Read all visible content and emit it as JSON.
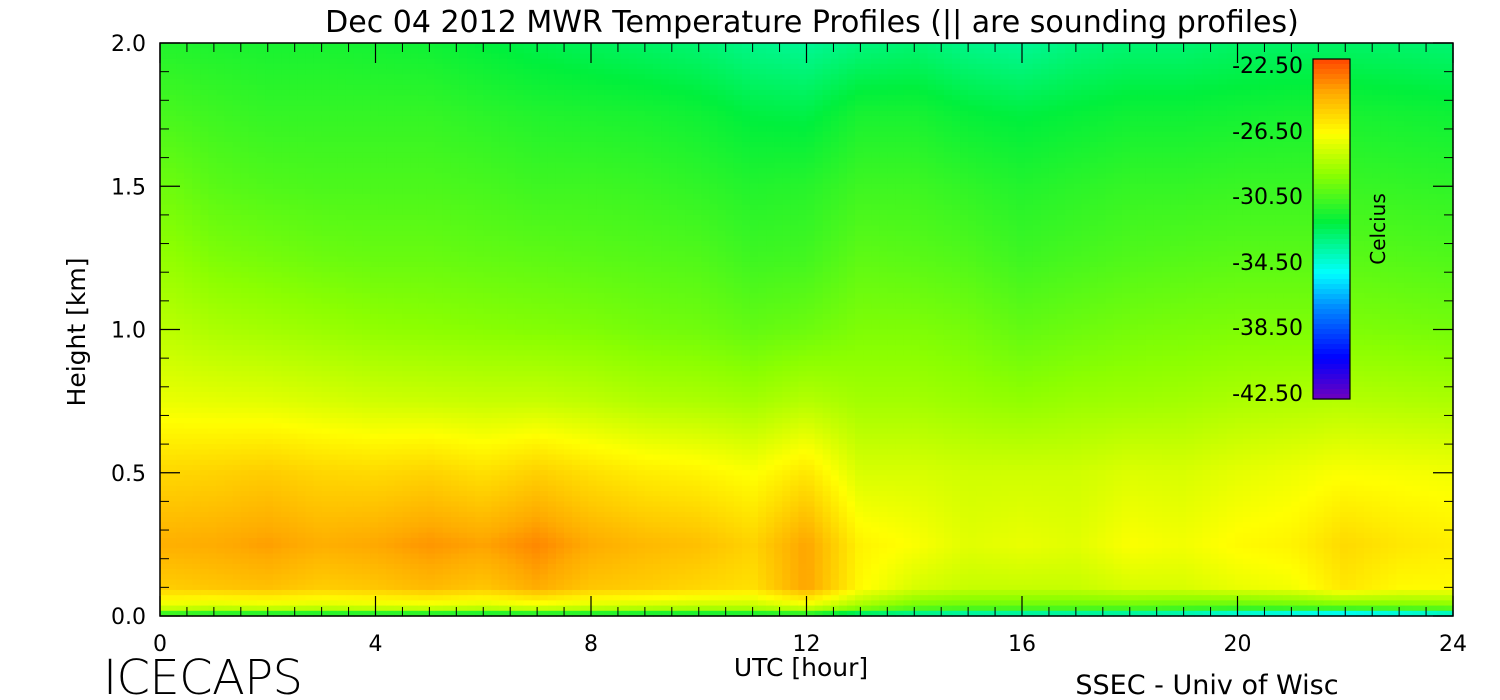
{
  "chart_data": {
    "type": "heatmap",
    "title": "Dec 04 2012 MWR Temperature Profiles (|| are sounding profiles)",
    "xlabel": "UTC [hour]",
    "ylabel": "Height [km]",
    "xlim": [
      0,
      24
    ],
    "ylim": [
      0,
      2.0
    ],
    "x_ticks": [
      "0",
      "4",
      "8",
      "12",
      "16",
      "20",
      "24"
    ],
    "y_ticks": [
      "0.0",
      "0.5",
      "1.0",
      "1.5",
      "2.0"
    ],
    "colorbar": {
      "label": "Celcius",
      "ticks": [
        "-22.50",
        "-26.50",
        "-30.50",
        "-34.50",
        "-38.50",
        "-42.50"
      ],
      "range": [
        -43.5,
        -22.0
      ]
    },
    "time_hours": [
      0.25,
      1,
      2,
      3,
      4,
      5,
      6,
      7,
      8,
      9,
      10,
      11,
      12,
      13,
      14,
      15,
      16,
      17,
      18,
      19,
      20,
      21,
      22,
      23,
      23.9
    ],
    "profiles_celsius": {
      "height_km": [
        0.0,
        0.03,
        0.1,
        0.25,
        0.5,
        0.75,
        1.0,
        1.25,
        1.5,
        1.75,
        2.0
      ],
      "values": [
        [
          -32.5,
          -27.5,
          -25.2,
          -24.3,
          -25.5,
          -27.2,
          -28.3,
          -29.2,
          -30.0,
          -30.8,
          -31.6
        ],
        [
          -32.8,
          -27.8,
          -25.0,
          -24.2,
          -25.4,
          -27.3,
          -28.6,
          -29.6,
          -30.4,
          -31.0,
          -31.7
        ],
        [
          -33.0,
          -27.6,
          -24.8,
          -23.9,
          -25.2,
          -27.4,
          -28.8,
          -29.8,
          -30.6,
          -31.2,
          -31.8
        ],
        [
          -33.0,
          -27.8,
          -25.2,
          -24.3,
          -25.5,
          -27.6,
          -29.0,
          -30.0,
          -30.7,
          -31.2,
          -31.8
        ],
        [
          -33.0,
          -27.6,
          -25.0,
          -24.1,
          -25.6,
          -27.8,
          -29.2,
          -30.1,
          -30.7,
          -31.2,
          -31.9
        ],
        [
          -33.0,
          -27.5,
          -24.6,
          -23.7,
          -25.4,
          -27.9,
          -29.3,
          -30.1,
          -30.7,
          -31.2,
          -32.0
        ],
        [
          -33.2,
          -27.8,
          -25.0,
          -24.0,
          -25.8,
          -28.0,
          -29.4,
          -30.2,
          -30.8,
          -31.4,
          -32.3
        ],
        [
          -33.0,
          -27.4,
          -24.2,
          -23.4,
          -25.3,
          -28.0,
          -29.5,
          -30.3,
          -31.0,
          -31.6,
          -32.6
        ],
        [
          -33.0,
          -27.8,
          -25.0,
          -24.2,
          -25.8,
          -28.2,
          -29.6,
          -30.4,
          -31.0,
          -31.7,
          -32.8
        ],
        [
          -33.2,
          -28.0,
          -25.2,
          -24.6,
          -26.2,
          -28.5,
          -29.8,
          -30.5,
          -31.1,
          -31.8,
          -33.0
        ],
        [
          -33.2,
          -28.2,
          -25.5,
          -24.8,
          -26.4,
          -28.6,
          -29.9,
          -30.6,
          -31.3,
          -32.0,
          -33.2
        ],
        [
          -33.0,
          -28.2,
          -25.8,
          -25.4,
          -26.8,
          -28.8,
          -30.2,
          -31.0,
          -31.6,
          -32.4,
          -33.6
        ],
        [
          -32.6,
          -27.6,
          -24.0,
          -24.0,
          -26.0,
          -28.4,
          -30.0,
          -30.9,
          -31.5,
          -32.5,
          -33.8
        ],
        [
          -34.5,
          -29.0,
          -26.6,
          -26.4,
          -27.6,
          -28.8,
          -29.6,
          -30.3,
          -31.0,
          -31.8,
          -33.4
        ],
        [
          -35.0,
          -30.0,
          -27.6,
          -26.8,
          -27.6,
          -28.8,
          -29.6,
          -30.4,
          -31.0,
          -31.8,
          -33.2
        ],
        [
          -35.5,
          -30.2,
          -28.0,
          -27.4,
          -27.8,
          -29.0,
          -29.8,
          -30.6,
          -31.3,
          -32.2,
          -33.6
        ],
        [
          -35.5,
          -30.2,
          -28.0,
          -27.2,
          -27.8,
          -29.2,
          -30.2,
          -31.0,
          -31.6,
          -32.4,
          -33.8
        ],
        [
          -35.5,
          -30.2,
          -28.0,
          -27.4,
          -27.8,
          -29.0,
          -30.0,
          -30.8,
          -31.4,
          -32.2,
          -33.4
        ],
        [
          -35.5,
          -30.2,
          -27.6,
          -26.8,
          -27.5,
          -28.9,
          -29.8,
          -30.6,
          -31.2,
          -32.0,
          -33.2
        ],
        [
          -35.8,
          -30.4,
          -27.6,
          -27.0,
          -27.6,
          -28.8,
          -29.7,
          -30.5,
          -31.2,
          -32.0,
          -33.2
        ],
        [
          -36.5,
          -30.6,
          -27.2,
          -26.6,
          -27.3,
          -28.6,
          -29.6,
          -30.4,
          -31.1,
          -31.9,
          -33.0
        ],
        [
          -37.0,
          -30.4,
          -27.0,
          -26.4,
          -27.1,
          -28.5,
          -29.6,
          -30.4,
          -31.1,
          -31.8,
          -33.0
        ],
        [
          -37.5,
          -30.2,
          -26.0,
          -25.6,
          -26.8,
          -28.4,
          -29.6,
          -30.4,
          -31.1,
          -31.8,
          -33.0
        ],
        [
          -37.0,
          -30.0,
          -26.6,
          -26.0,
          -26.9,
          -28.5,
          -29.7,
          -30.5,
          -31.2,
          -31.9,
          -33.1
        ],
        [
          -36.5,
          -29.8,
          -26.6,
          -26.2,
          -27.0,
          -28.6,
          -29.8,
          -30.6,
          -31.3,
          -32.0,
          -33.2
        ]
      ]
    }
  },
  "footer": {
    "left": "ICECAPS",
    "right": "SSEC - Univ of Wisc"
  }
}
